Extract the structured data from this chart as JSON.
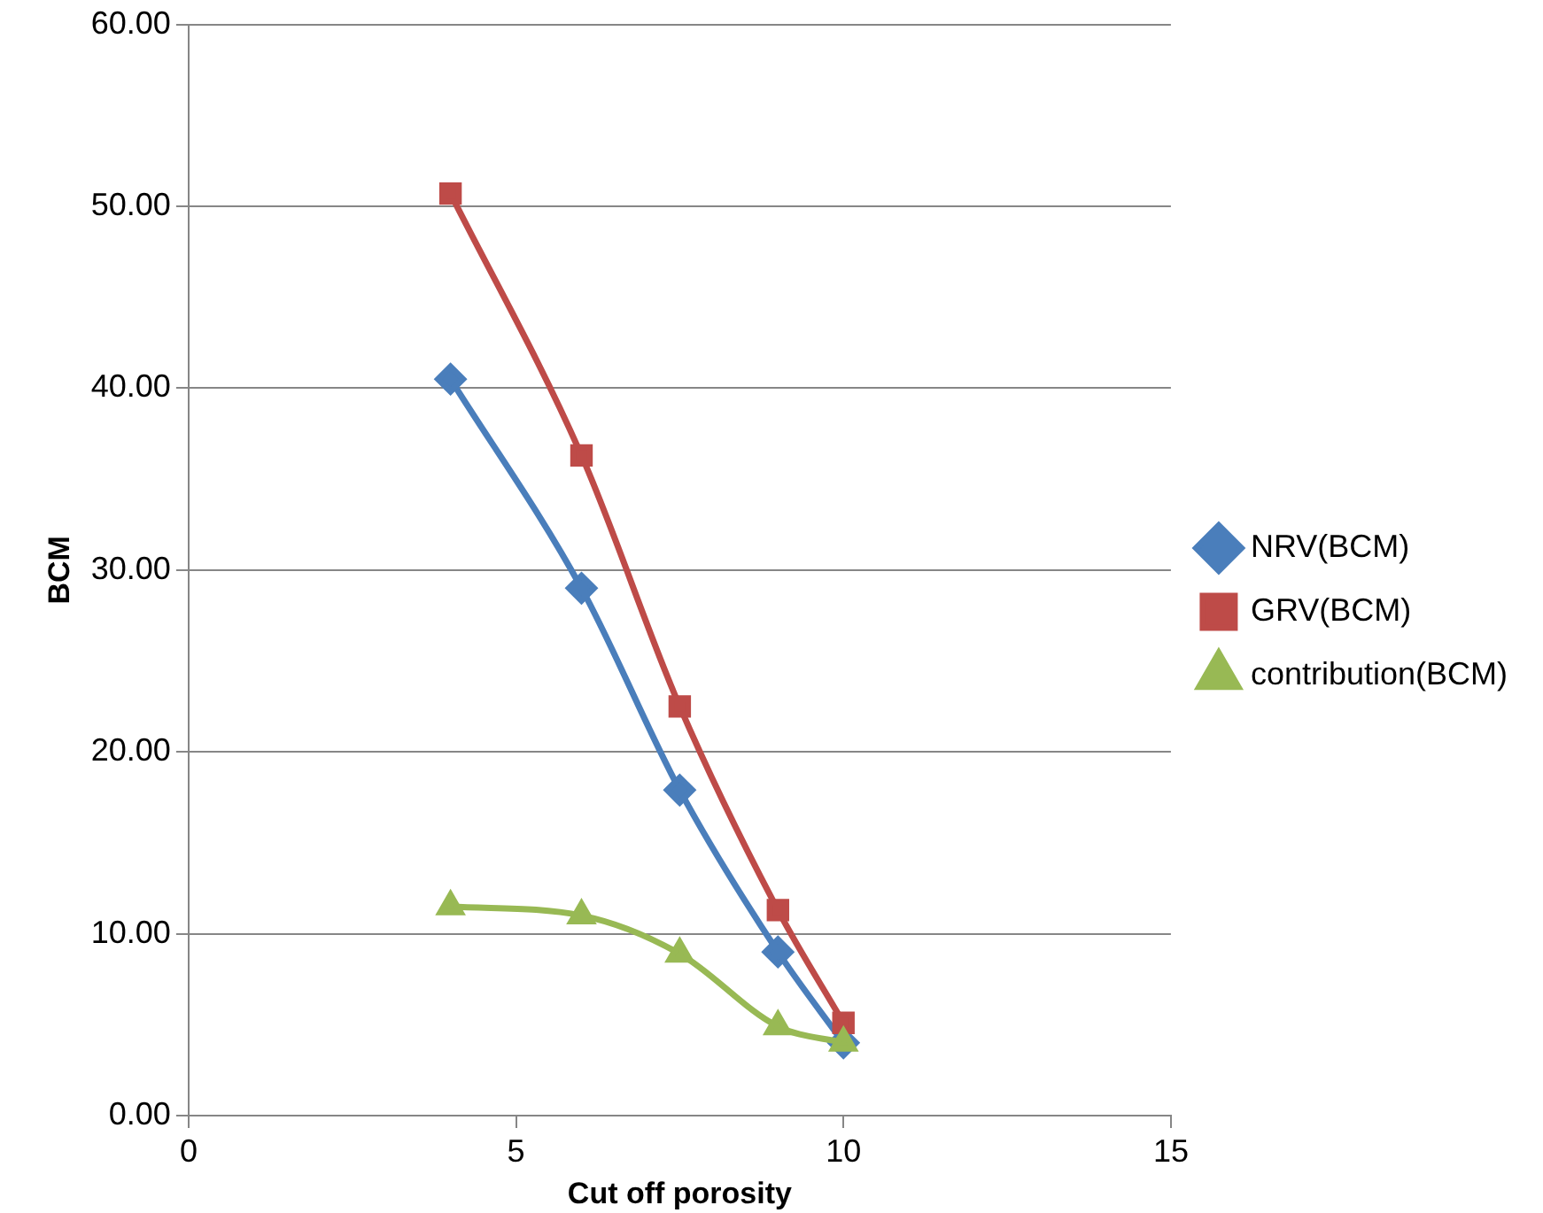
{
  "chart_data": {
    "type": "line",
    "xlabel": "Cut off porosity",
    "ylabel": "BCM",
    "xlim": [
      0,
      15
    ],
    "xticks": [
      0,
      5,
      10,
      15
    ],
    "ylim": [
      0,
      60
    ],
    "yticks": [
      {
        "value": 0,
        "label": "0.00"
      },
      {
        "value": 10,
        "label": "10.00"
      },
      {
        "value": 20,
        "label": "20.00"
      },
      {
        "value": 30,
        "label": "30.00"
      },
      {
        "value": 40,
        "label": "40.00"
      },
      {
        "value": 50,
        "label": "50.00"
      },
      {
        "value": 60,
        "label": "60.00"
      }
    ],
    "x": [
      4,
      6,
      7.5,
      9,
      10
    ],
    "series": [
      {
        "name": "NRV(BCM)",
        "color": "#4a7ebb",
        "marker": "diamond",
        "values": [
          40.5,
          29.0,
          17.9,
          9.0,
          4.0
        ]
      },
      {
        "name": "GRV(BCM)",
        "color": "#be4b48",
        "marker": "square",
        "values": [
          50.7,
          36.3,
          22.5,
          11.3,
          5.1
        ]
      },
      {
        "name": "contribution(BCM)",
        "color": "#98b954",
        "marker": "triangle",
        "values": [
          11.5,
          11.0,
          8.9,
          4.9,
          4.0
        ]
      }
    ],
    "grid": "y",
    "legend": "right",
    "line_style": "solid"
  }
}
